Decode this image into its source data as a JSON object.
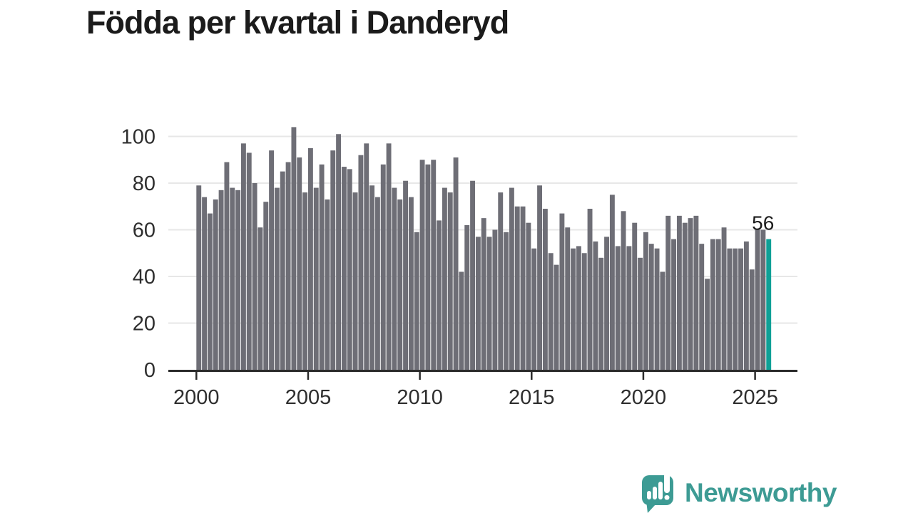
{
  "title": "Födda per kvartal i Danderyd",
  "chart_data": {
    "type": "bar",
    "title": "Födda per kvartal i Danderyd",
    "x_unit": "quarter",
    "start": {
      "year": 2000,
      "quarter": 1
    },
    "end": {
      "year": 2025,
      "quarter": 3
    },
    "values": [
      79,
      74,
      67,
      73,
      77,
      89,
      78,
      77,
      97,
      93,
      80,
      61,
      72,
      94,
      78,
      85,
      89,
      104,
      91,
      76,
      95,
      78,
      88,
      73,
      94,
      101,
      87,
      86,
      76,
      92,
      97,
      79,
      74,
      88,
      97,
      78,
      73,
      81,
      74,
      59,
      90,
      88,
      90,
      64,
      78,
      76,
      91,
      42,
      62,
      81,
      57,
      65,
      57,
      60,
      76,
      59,
      78,
      70,
      70,
      63,
      52,
      79,
      69,
      50,
      45,
      67,
      61,
      52,
      53,
      50,
      69,
      55,
      48,
      57,
      75,
      53,
      68,
      53,
      63,
      48,
      59,
      54,
      52,
      42,
      66,
      56,
      66,
      63,
      65,
      66,
      54,
      39,
      56,
      56,
      61,
      52,
      52,
      52,
      55,
      43,
      60,
      60,
      56
    ],
    "highlight_last": true,
    "annotation": {
      "text": "56"
    },
    "xticks": [
      2000,
      2005,
      2010,
      2015,
      2020,
      2025
    ],
    "yticks": [
      0,
      20,
      40,
      60,
      80,
      100
    ],
    "ylim": [
      0,
      110
    ],
    "grid": true,
    "legend": null
  },
  "colors": {
    "bar": "#6e6e76",
    "highlight": "#0fa096",
    "grid": "#e7e7e7",
    "axis": "#2b2b2b",
    "tick_text": "#2e2e2e",
    "title_text": "#1b1b1b",
    "logo": "#3d9b94"
  },
  "logo": {
    "text": "Newsworthy",
    "icon": "speech-bubble-bar-chart-exclamation"
  }
}
